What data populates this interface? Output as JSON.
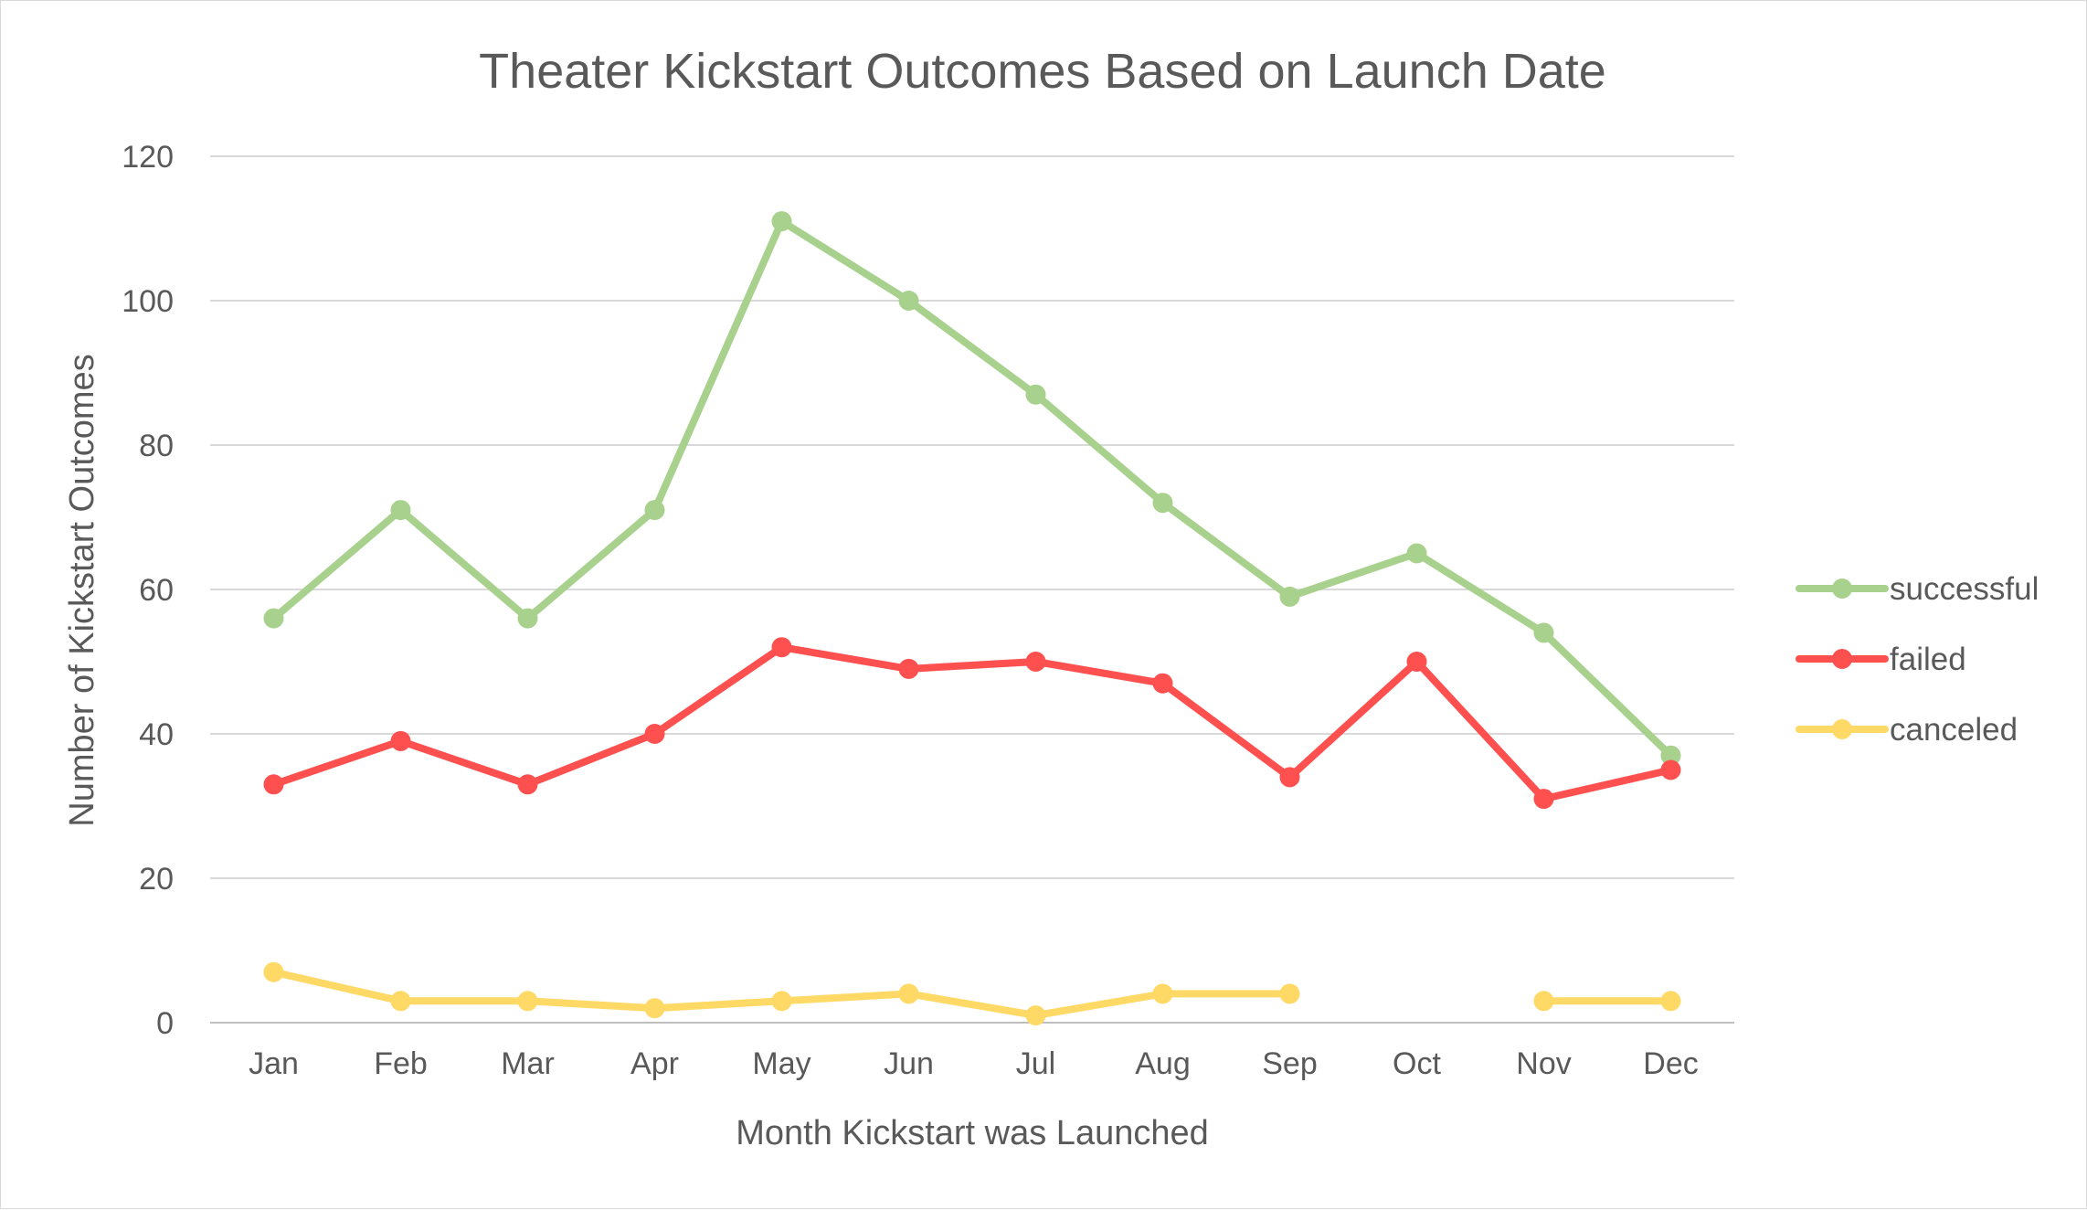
{
  "chart_data": {
    "type": "line",
    "title": "Theater Kickstart Outcomes Based on Launch Date",
    "xlabel": "Month Kickstart was Launched",
    "ylabel": "Number of Kickstart Outcomes",
    "categories": [
      "Jan",
      "Feb",
      "Mar",
      "Apr",
      "May",
      "Jun",
      "Jul",
      "Aug",
      "Sep",
      "Oct",
      "Nov",
      "Dec"
    ],
    "ylim": [
      0,
      120
    ],
    "yticks": [
      0,
      20,
      40,
      60,
      80,
      100,
      120
    ],
    "grid": true,
    "legend_position": "right",
    "series": [
      {
        "name": "successful",
        "color": "#a9d18e",
        "values": [
          56,
          71,
          56,
          71,
          111,
          100,
          87,
          72,
          59,
          65,
          54,
          37
        ]
      },
      {
        "name": "failed",
        "color": "#ff5050",
        "values": [
          33,
          39,
          33,
          40,
          52,
          49,
          50,
          47,
          34,
          50,
          31,
          35
        ]
      },
      {
        "name": "canceled",
        "color": "#ffd966",
        "values": [
          7,
          3,
          3,
          2,
          3,
          4,
          1,
          4,
          4,
          null,
          3,
          3
        ]
      }
    ]
  }
}
